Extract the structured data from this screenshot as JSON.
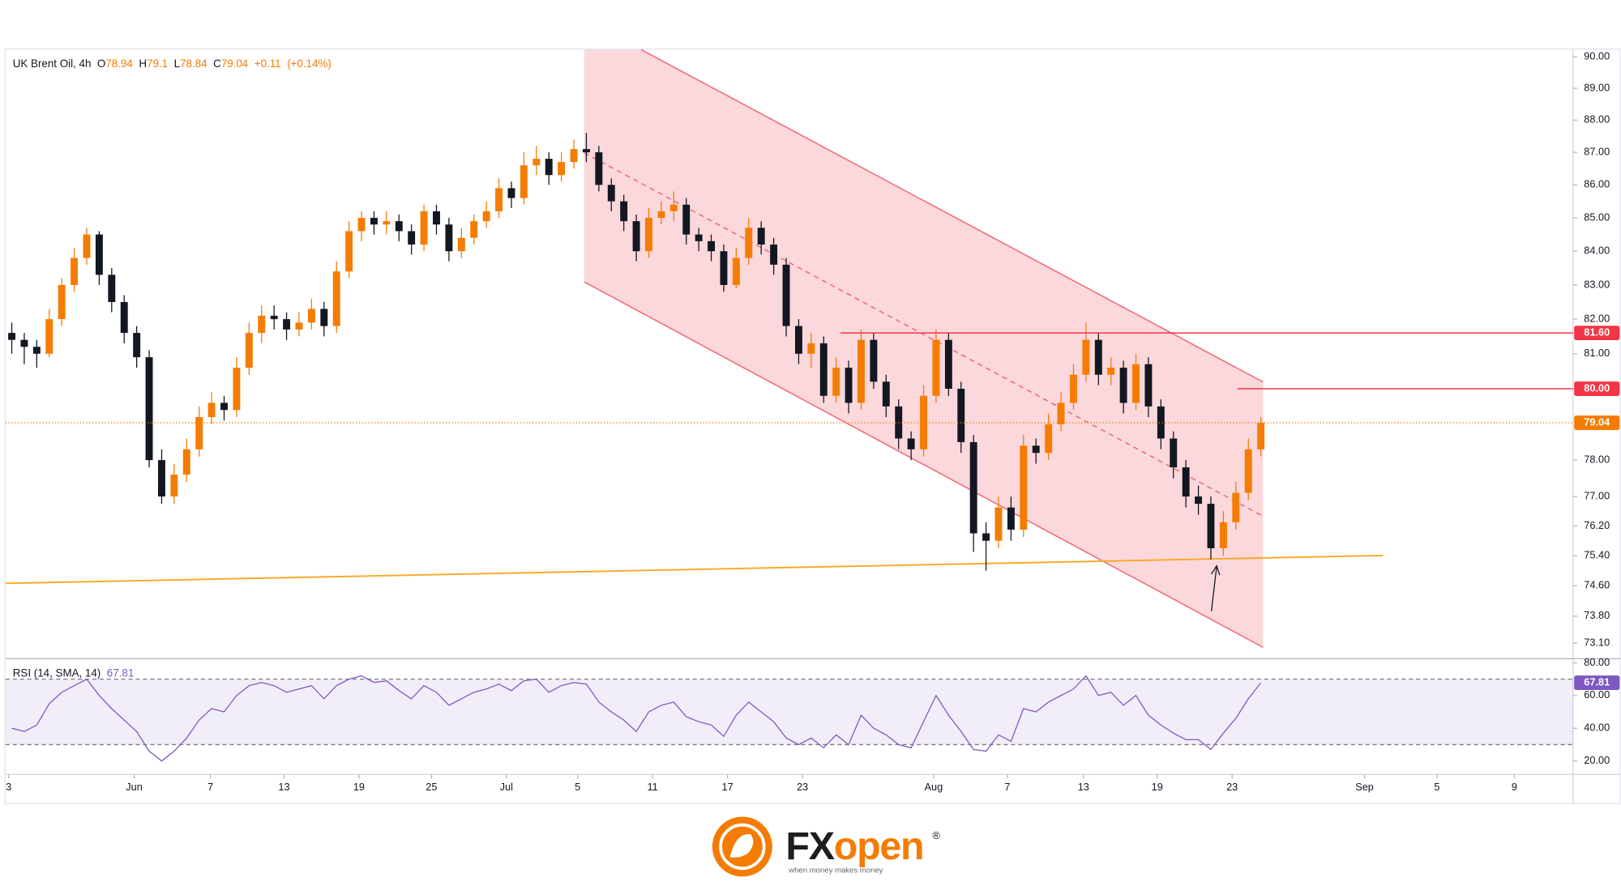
{
  "chart_data": [
    {
      "type": "candlestick",
      "title": "UK Brent Oil, 4h",
      "ohlc": [
        {
          "prefix": "O",
          "value": 78.94
        },
        {
          "prefix": "H",
          "value": 79.1
        },
        {
          "prefix": "L",
          "value": 78.84
        },
        {
          "prefix": "C",
          "value": 79.04
        }
      ],
      "change": {
        "value": 0.11,
        "label": "+0.11"
      },
      "change_pct": {
        "value": 0.14,
        "label": "(+0.14%)"
      },
      "up_color": "#f57c00",
      "down_color": "#131722",
      "log": true,
      "grid": false,
      "opens": [
        81.6,
        81.4,
        81.2,
        81.0,
        82.0,
        83.0,
        83.8,
        84.5,
        83.3,
        82.5,
        81.6,
        80.9,
        78.0,
        77.0,
        77.6,
        78.3,
        79.2,
        79.6,
        79.4,
        80.6,
        81.6,
        82.1,
        82.0,
        81.7,
        81.9,
        82.3,
        81.8,
        83.4,
        84.6,
        85.0,
        84.8,
        84.9,
        84.6,
        84.2,
        85.2,
        84.8,
        84.0,
        84.4,
        84.9,
        85.2,
        85.9,
        85.6,
        86.6,
        86.8,
        86.3,
        86.7,
        87.1,
        87.0,
        86.0,
        85.5,
        84.9,
        84.0,
        85.0,
        85.2,
        85.4,
        84.5,
        84.3,
        84.0,
        83.0,
        83.8,
        84.7,
        84.2,
        83.6,
        81.8,
        81.0,
        81.3,
        79.8,
        80.6,
        79.6,
        81.4,
        80.2,
        79.5,
        78.6,
        78.3,
        79.8,
        81.4,
        80.0,
        78.5,
        76.0,
        75.8,
        76.7,
        76.1,
        78.4,
        78.2,
        79.0,
        79.6,
        80.4,
        81.4,
        80.4,
        80.6,
        79.6,
        80.7,
        79.5,
        78.6,
        77.8,
        77.0,
        76.8,
        75.6,
        76.3,
        77.1,
        78.3
      ],
      "highs": [
        81.9,
        81.6,
        81.4,
        82.3,
        83.2,
        84.1,
        84.7,
        84.6,
        83.5,
        82.7,
        81.8,
        81.1,
        78.3,
        77.9,
        78.6,
        79.5,
        79.9,
        79.8,
        80.9,
        81.9,
        82.4,
        82.4,
        82.2,
        82.2,
        82.6,
        82.5,
        83.7,
        84.9,
        85.2,
        85.2,
        85.2,
        85.1,
        84.8,
        85.4,
        85.4,
        85.0,
        84.7,
        85.1,
        85.5,
        86.2,
        86.1,
        87.0,
        87.2,
        87.0,
        87.0,
        87.4,
        87.6,
        87.2,
        86.2,
        85.7,
        85.1,
        85.3,
        85.5,
        85.8,
        85.6,
        84.7,
        84.5,
        84.2,
        84.1,
        85.0,
        84.9,
        84.4,
        83.8,
        82.0,
        81.6,
        81.5,
        80.9,
        80.8,
        81.7,
        81.6,
        80.4,
        79.7,
        78.8,
        80.1,
        81.7,
        81.6,
        80.2,
        78.7,
        76.3,
        77.0,
        77.0,
        78.7,
        78.6,
        79.3,
        79.9,
        80.7,
        81.9,
        81.6,
        80.9,
        80.8,
        81.0,
        80.9,
        79.7,
        78.8,
        78.0,
        77.3,
        77.0,
        76.6,
        77.4,
        78.6,
        79.2
      ],
      "lows": [
        81.0,
        80.7,
        80.6,
        80.9,
        81.8,
        82.8,
        83.6,
        83.0,
        82.2,
        81.3,
        80.6,
        77.8,
        76.8,
        76.8,
        77.4,
        78.1,
        79.0,
        79.1,
        79.2,
        80.4,
        81.3,
        81.7,
        81.4,
        81.5,
        81.7,
        81.5,
        81.6,
        83.2,
        84.3,
        84.5,
        84.5,
        84.3,
        83.9,
        84.0,
        84.5,
        83.7,
        83.8,
        84.2,
        84.7,
        85.0,
        85.3,
        85.4,
        86.3,
        86.0,
        86.1,
        86.5,
        86.7,
        85.8,
        85.2,
        84.6,
        83.7,
        83.8,
        84.8,
        84.9,
        84.2,
        84.0,
        83.7,
        82.8,
        82.9,
        83.6,
        83.9,
        83.3,
        81.5,
        80.7,
        80.6,
        79.6,
        79.6,
        79.3,
        79.4,
        80.0,
        79.2,
        78.3,
        78.0,
        78.1,
        79.6,
        79.8,
        78.2,
        75.5,
        75.0,
        75.6,
        75.8,
        75.9,
        77.9,
        78.0,
        78.8,
        79.4,
        80.2,
        80.1,
        80.1,
        79.3,
        79.4,
        79.2,
        78.3,
        77.5,
        76.7,
        76.5,
        75.3,
        75.4,
        76.1,
        76.9,
        78.1
      ],
      "closes": [
        81.4,
        81.2,
        81.0,
        82.0,
        83.0,
        83.8,
        84.5,
        83.3,
        82.5,
        81.6,
        80.9,
        78.0,
        77.0,
        77.6,
        78.3,
        79.2,
        79.6,
        79.4,
        80.6,
        81.6,
        82.1,
        82.0,
        81.7,
        81.9,
        82.3,
        81.8,
        83.4,
        84.6,
        85.0,
        84.8,
        84.9,
        84.6,
        84.2,
        85.2,
        84.8,
        84.0,
        84.4,
        84.9,
        85.2,
        85.9,
        85.6,
        86.6,
        86.8,
        86.3,
        86.7,
        87.1,
        87.0,
        86.0,
        85.5,
        84.9,
        84.0,
        85.0,
        85.2,
        85.4,
        84.5,
        84.3,
        84.0,
        83.0,
        83.8,
        84.7,
        84.2,
        83.6,
        81.8,
        81.0,
        81.3,
        79.8,
        80.6,
        79.6,
        81.4,
        80.2,
        79.5,
        78.6,
        78.3,
        79.8,
        81.4,
        80.0,
        78.5,
        76.0,
        75.8,
        76.7,
        76.1,
        78.4,
        78.2,
        79.0,
        79.6,
        80.4,
        81.4,
        80.4,
        80.6,
        79.6,
        80.7,
        79.5,
        78.6,
        77.8,
        77.0,
        76.8,
        75.6,
        76.3,
        77.1,
        78.3,
        79.04
      ],
      "xlim": [
        -0.5,
        125
      ],
      "xticks": [
        {
          "value": -0.25,
          "label": "3"
        },
        {
          "value": 9.8,
          "label": "Jun"
        },
        {
          "value": 15.9,
          "label": "7"
        },
        {
          "value": 21.8,
          "label": "13"
        },
        {
          "value": 27.8,
          "label": "19"
        },
        {
          "value": 33.6,
          "label": "25"
        },
        {
          "value": 39.6,
          "label": "Jul"
        },
        {
          "value": 45.3,
          "label": "5"
        },
        {
          "value": 51.3,
          "label": "11"
        },
        {
          "value": 57.3,
          "label": "17"
        },
        {
          "value": 63.3,
          "label": "23"
        },
        {
          "value": 73.8,
          "label": "Aug"
        },
        {
          "value": 79.7,
          "label": "7"
        },
        {
          "value": 85.8,
          "label": "13"
        },
        {
          "value": 91.7,
          "label": "19"
        },
        {
          "value": 97.7,
          "label": "23"
        },
        {
          "value": 108.3,
          "label": "Sep"
        },
        {
          "value": 114.1,
          "label": "5"
        },
        {
          "value": 120.3,
          "label": "9"
        }
      ],
      "ylim": [
        72.72,
        90.23
      ],
      "yticks": [
        {
          "value": 90,
          "label": "90.00"
        },
        {
          "value": 89,
          "label": "89.00"
        },
        {
          "value": 88,
          "label": "88.00"
        },
        {
          "value": 87,
          "label": "87.00"
        },
        {
          "value": 86,
          "label": "86.00"
        },
        {
          "value": 85,
          "label": "85.00"
        },
        {
          "value": 84,
          "label": "84.00"
        },
        {
          "value": 83,
          "label": "83.00"
        },
        {
          "value": 82,
          "label": "82.00"
        },
        {
          "value": 81,
          "label": "81.00"
        },
        {
          "value": 78,
          "label": "78.00"
        },
        {
          "value": 77,
          "label": "77.00"
        },
        {
          "value": 76.2,
          "label": "76.20"
        },
        {
          "value": 75.4,
          "label": "75.40"
        },
        {
          "value": 74.6,
          "label": "74.60"
        },
        {
          "value": 73.8,
          "label": "73.80"
        },
        {
          "value": 73.1,
          "label": "73.10"
        }
      ],
      "levels": [
        {
          "value": 81.6,
          "label": "81.60",
          "color": "#f23645"
        },
        {
          "value": 80,
          "label": "80.00",
          "color": "#f23645"
        }
      ],
      "last_price": {
        "value": 79.04,
        "label": "79.04",
        "color": "#f57c00"
      }
    },
    {
      "type": "line",
      "title": "RSI (14, SMA, 14)",
      "last_value": 67.81,
      "color": "#7e57c2",
      "values": [
        40,
        38,
        42,
        55,
        62,
        66,
        70,
        60,
        52,
        45,
        38,
        26,
        20,
        26,
        34,
        45,
        52,
        50,
        60,
        66,
        68,
        66,
        62,
        64,
        66,
        58,
        66,
        70,
        72,
        68,
        69,
        63,
        58,
        66,
        62,
        54,
        58,
        62,
        64,
        67,
        63,
        69,
        70,
        62,
        66,
        68,
        67,
        56,
        50,
        45,
        38,
        50,
        54,
        56,
        47,
        44,
        42,
        35,
        48,
        56,
        50,
        44,
        34,
        30,
        34,
        28,
        36,
        30,
        48,
        40,
        36,
        30,
        28,
        44,
        60,
        48,
        38,
        27,
        26,
        36,
        32,
        52,
        50,
        56,
        60,
        64,
        72,
        60,
        62,
        54,
        60,
        48,
        42,
        37,
        33,
        33,
        27,
        37,
        46,
        58,
        67.81
      ],
      "band": [
        30,
        70
      ],
      "ylim": [
        11.8,
        82.5
      ],
      "yticks": [
        {
          "value": 80,
          "label": "80.00"
        },
        {
          "value": 60,
          "label": "60.00"
        },
        {
          "value": 40,
          "label": "40.00"
        },
        {
          "value": 20,
          "label": "20.00"
        }
      ]
    }
  ],
  "footer": {
    "brand_a": "FX",
    "brand_b": "open",
    "mark": "®",
    "tagline": "when money makes money"
  }
}
